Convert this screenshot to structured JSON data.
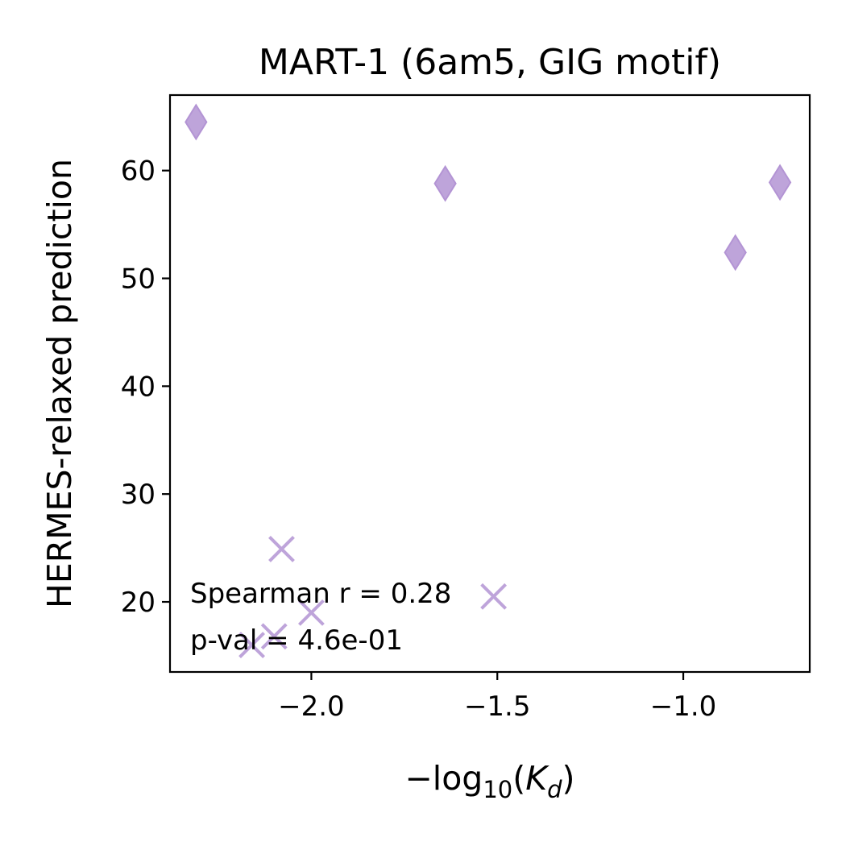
{
  "chart_data": {
    "type": "scatter",
    "title": "MART-1 (6am5, GIG motif)",
    "xlabel": {
      "prefix": "−log",
      "sub": "10",
      "open": "(",
      "var": "K",
      "var_sub": "d",
      "close": ")"
    },
    "ylabel": "HERMES-relaxed prediction",
    "xlim": [
      -2.38,
      -0.66
    ],
    "ylim": [
      13.5,
      67
    ],
    "xticks": [
      {
        "value": -2.0,
        "label": "−2.0"
      },
      {
        "value": -1.5,
        "label": "−1.5"
      },
      {
        "value": -1.0,
        "label": "−1.0"
      }
    ],
    "yticks": [
      {
        "value": 20,
        "label": "20"
      },
      {
        "value": 30,
        "label": "30"
      },
      {
        "value": 40,
        "label": "40"
      },
      {
        "value": 50,
        "label": "50"
      },
      {
        "value": 60,
        "label": "60"
      }
    ],
    "color": "#b394d4",
    "series": [
      {
        "marker": "diamond",
        "points": [
          {
            "x": -2.31,
            "y": 64.5
          },
          {
            "x": -1.64,
            "y": 58.8
          },
          {
            "x": -0.86,
            "y": 52.4
          },
          {
            "x": -0.74,
            "y": 58.9
          }
        ]
      },
      {
        "marker": "x",
        "points": [
          {
            "x": -2.08,
            "y": 24.9
          },
          {
            "x": -2.0,
            "y": 19.0
          },
          {
            "x": -1.51,
            "y": 20.5
          },
          {
            "x": -2.16,
            "y": 16.0
          },
          {
            "x": -2.1,
            "y": 16.8
          }
        ]
      }
    ],
    "annotations": [
      "Spearman r = 0.28",
      "p-val = 4.6e-01"
    ],
    "grid": false
  }
}
